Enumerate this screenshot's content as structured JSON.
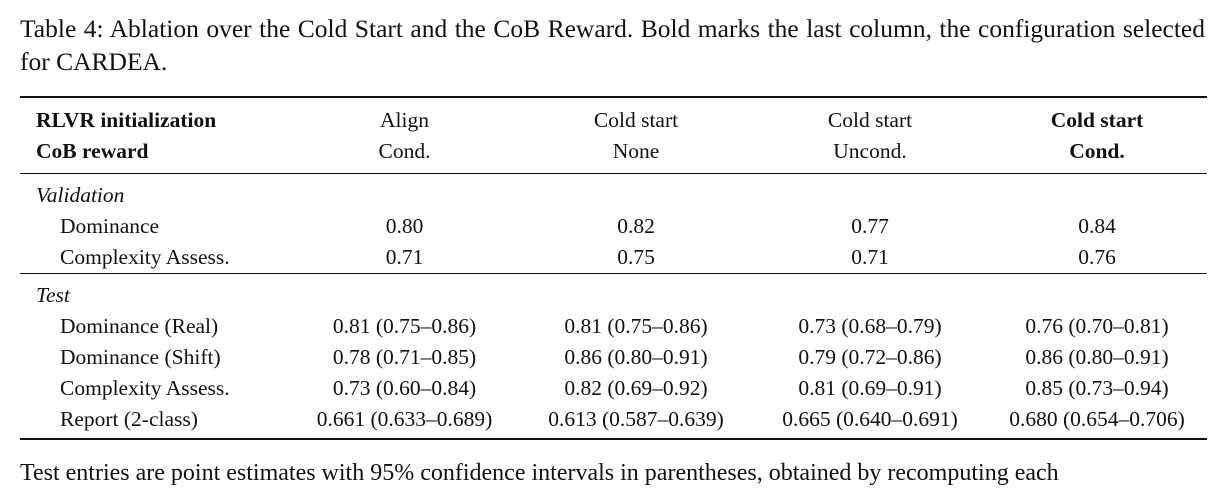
{
  "caption": "Table 4: Ablation over the Cold Start and the CoB Reward. Bold marks the last column, the configuration selected for CARDEA.",
  "header": {
    "row1_label": "RLVR initialization",
    "row2_label": "CoB reward",
    "columns": [
      {
        "init": "Align",
        "reward": "Cond."
      },
      {
        "init": "Cold start",
        "reward": "None"
      },
      {
        "init": "Cold start",
        "reward": "Uncond."
      },
      {
        "init": "Cold start",
        "reward": "Cond."
      }
    ]
  },
  "validation": {
    "title": "Validation",
    "rows": [
      {
        "metric": "Dominance",
        "values": [
          "0.80",
          "0.82",
          "0.77",
          "0.84"
        ]
      },
      {
        "metric": "Complexity Assess.",
        "values": [
          "0.71",
          "0.75",
          "0.71",
          "0.76"
        ]
      }
    ]
  },
  "test": {
    "title": "Test",
    "rows": [
      {
        "metric": "Dominance (Real)",
        "values": [
          "0.81 (0.75–0.86)",
          "0.81 (0.75–0.86)",
          "0.73 (0.68–0.79)",
          "0.76 (0.70–0.81)"
        ]
      },
      {
        "metric": "Dominance (Shift)",
        "values": [
          "0.78 (0.71–0.85)",
          "0.86 (0.80–0.91)",
          "0.79 (0.72–0.86)",
          "0.86 (0.80–0.91)"
        ]
      },
      {
        "metric": "Complexity Assess.",
        "values": [
          "0.73 (0.60–0.84)",
          "0.82 (0.69–0.92)",
          "0.81 (0.69–0.91)",
          "0.85 (0.73–0.94)"
        ]
      },
      {
        "metric": "Report (2-class)",
        "values": [
          "0.661 (0.633–0.689)",
          "0.613 (0.587–0.639)",
          "0.665 (0.640–0.691)",
          "0.680 (0.654–0.706)"
        ]
      }
    ]
  },
  "footnote": "Test entries are point estimates with 95% confidence intervals in parentheses, obtained by recomputing each"
}
